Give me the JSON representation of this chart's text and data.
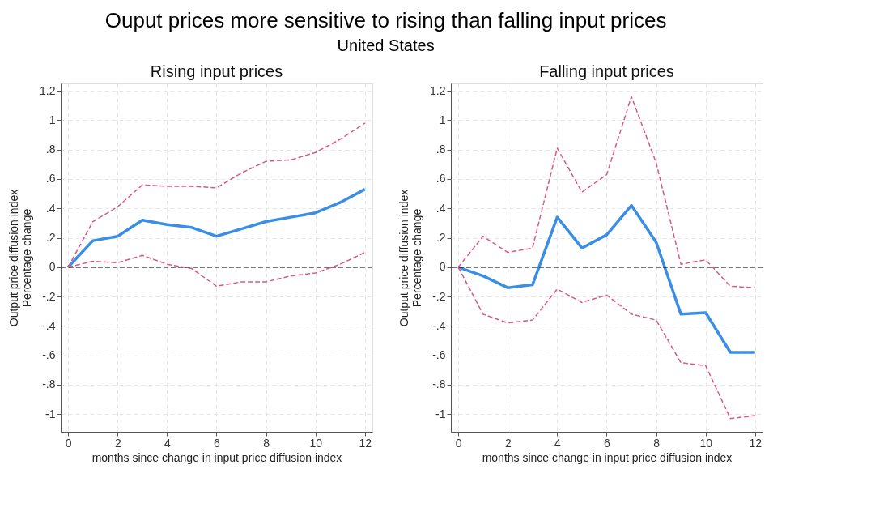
{
  "chart_data": [
    {
      "type": "line",
      "title": "Rising input prices",
      "annotations": [
        "Ouput prices more sensitive to rising than falling input prices",
        "United States"
      ],
      "xlabel": "months since change in input price diffusion index",
      "ylabel": "Output price diffusion index\nPercentage change",
      "x": [
        0,
        1,
        2,
        3,
        4,
        5,
        6,
        7,
        8,
        9,
        10,
        11,
        12
      ],
      "series": [
        {
          "color": "#3a8ee6",
          "line_style": "solid",
          "values": [
            0,
            0.18,
            0.21,
            0.32,
            0.29,
            0.27,
            0.21,
            0.26,
            0.31,
            0.34,
            0.37,
            0.44,
            0.53
          ]
        },
        {
          "color": "#d65a84",
          "line_style": "dashed",
          "values": [
            0,
            0.31,
            0.41,
            0.56,
            0.55,
            0.55,
            0.54,
            0.64,
            0.72,
            0.73,
            0.78,
            0.87,
            0.98
          ]
        },
        {
          "color": "#d65a84",
          "line_style": "dashed",
          "values": [
            0,
            0.04,
            0.03,
            0.08,
            0.02,
            -0.01,
            -0.13,
            -0.1,
            -0.1,
            -0.06,
            -0.04,
            0.02,
            0.1
          ]
        }
      ],
      "xlim": [
        -0.3,
        12.3
      ],
      "xticks": [
        0,
        2,
        4,
        6,
        8,
        10,
        12
      ],
      "ylim": [
        -1.12,
        1.25
      ],
      "yticks": [
        {
          "value": -1,
          "label": "-1"
        },
        {
          "value": -0.8,
          "label": "-.8"
        },
        {
          "value": -0.6,
          "label": "-.6"
        },
        {
          "value": -0.4,
          "label": "-.4"
        },
        {
          "value": -0.2,
          "label": "-.2"
        },
        0,
        {
          "value": 0.2,
          "label": ".2"
        },
        {
          "value": 0.4,
          "label": ".4"
        },
        {
          "value": 0.6,
          "label": ".6"
        },
        {
          "value": 0.8,
          "label": ".8"
        },
        1,
        1.2
      ],
      "ref_lines": [
        {
          "axis": "y",
          "value": 0,
          "color": "#000000",
          "line_style": "dashed"
        }
      ],
      "grid": true
    },
    {
      "type": "line",
      "title": "Falling input prices",
      "xlabel": "months since change in input price diffusion index",
      "ylabel": "Output price diffusion index\nPercentage change",
      "x": [
        0,
        1,
        2,
        3,
        4,
        5,
        6,
        7,
        8,
        9,
        10,
        11,
        12
      ],
      "series": [
        {
          "color": "#3a8ee6",
          "line_style": "solid",
          "values": [
            0,
            -0.06,
            -0.14,
            -0.12,
            0.34,
            0.13,
            0.22,
            0.42,
            0.17,
            -0.32,
            -0.31,
            -0.58,
            -0.58
          ]
        },
        {
          "color": "#d65a84",
          "line_style": "dashed",
          "values": [
            0,
            0.21,
            0.1,
            0.13,
            0.81,
            0.51,
            0.63,
            1.16,
            0.71,
            0.02,
            0.05,
            -0.13,
            -0.14
          ]
        },
        {
          "color": "#d65a84",
          "line_style": "dashed",
          "values": [
            0,
            -0.32,
            -0.38,
            -0.36,
            -0.15,
            -0.24,
            -0.19,
            -0.32,
            -0.36,
            -0.65,
            -0.67,
            -1.03,
            -1.01
          ]
        }
      ],
      "xlim": [
        -0.3,
        12.3
      ],
      "xticks": [
        0,
        2,
        4,
        6,
        8,
        10,
        12
      ],
      "ylim": [
        -1.12,
        1.25
      ],
      "yticks": [
        {
          "value": -1,
          "label": "-1"
        },
        {
          "value": -0.8,
          "label": "-.8"
        },
        {
          "value": -0.6,
          "label": "-.6"
        },
        {
          "value": -0.4,
          "label": "-.4"
        },
        {
          "value": -0.2,
          "label": "-.2"
        },
        0,
        {
          "value": 0.2,
          "label": ".2"
        },
        {
          "value": 0.4,
          "label": ".4"
        },
        {
          "value": 0.6,
          "label": ".6"
        },
        {
          "value": 0.8,
          "label": ".8"
        },
        1,
        1.2
      ],
      "ref_lines": [
        {
          "axis": "y",
          "value": 0,
          "color": "#000000",
          "line_style": "dashed"
        }
      ],
      "grid": true
    }
  ]
}
